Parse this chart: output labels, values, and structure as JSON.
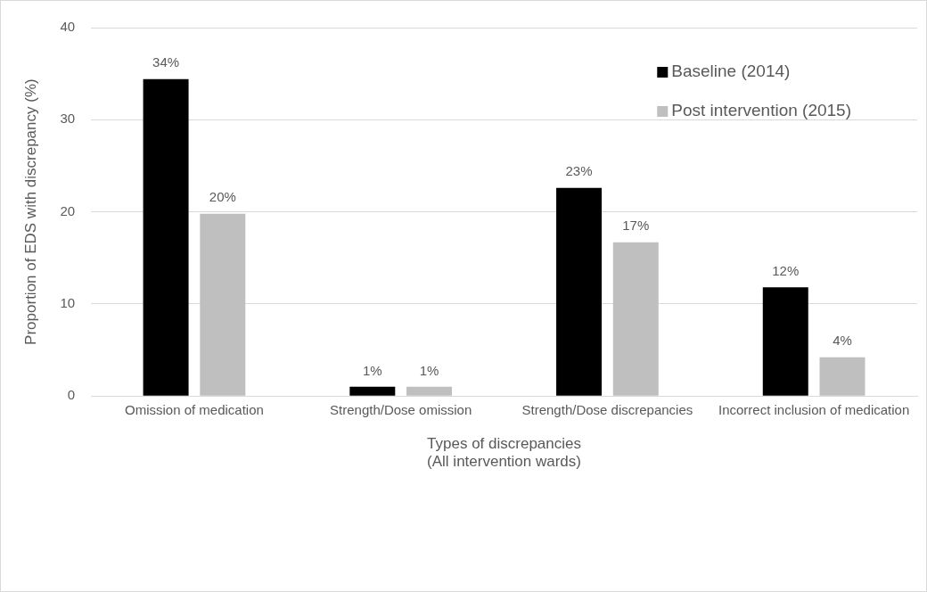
{
  "chart_data": {
    "type": "bar",
    "xlabel": "Types of discrepancies\n(All intervention wards)",
    "ylabel": "Proportion of EDS with discrepancy (%)",
    "categories": [
      "Omission of medication",
      "Strength/Dose omission",
      "Strength/Dose discrepancies",
      "Incorrect inclusion of medication"
    ],
    "series": [
      {
        "name": "Baseline (2014)",
        "color": "#000000",
        "values": [
          34.4,
          1,
          22.6,
          11.8
        ],
        "value_labels": [
          "34%",
          "1%",
          "23%",
          "12%"
        ]
      },
      {
        "name": "Post intervention (2015)",
        "color": "#bfbfbf",
        "values": [
          19.8,
          1,
          16.7,
          4.2
        ],
        "value_labels": [
          "20%",
          "1%",
          "17%",
          "4%"
        ]
      }
    ],
    "ylim": [
      0,
      40
    ],
    "yticks": [
      0,
      10,
      20,
      30,
      40
    ],
    "grid": "y",
    "legend": "top right"
  }
}
